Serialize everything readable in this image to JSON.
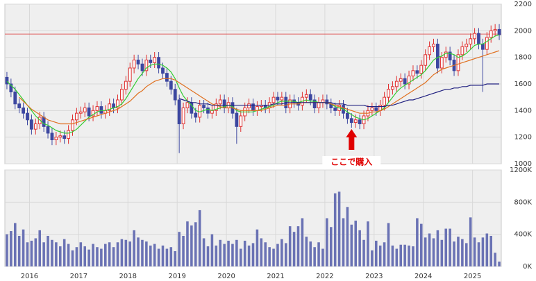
{
  "chart_data": [
    {
      "type": "candlestick",
      "open": [
        1650,
        1600,
        1540,
        1450,
        1420,
        1380,
        1330,
        1260,
        1300,
        1350,
        1280,
        1230,
        1180,
        1200,
        1210,
        1190,
        1250,
        1330,
        1380,
        1390,
        1420,
        1360,
        1400,
        1430,
        1380,
        1400,
        1450,
        1420,
        1480,
        1560,
        1620,
        1720,
        1780,
        1750,
        1700,
        1780,
        1760,
        1800,
        1720,
        1680,
        1620,
        1560,
        1480,
        1300,
        1420,
        1460,
        1380,
        1350,
        1440,
        1420,
        1380,
        1400,
        1450,
        1480,
        1420,
        1460,
        1380,
        1280,
        1360,
        1420,
        1450,
        1400,
        1430,
        1440,
        1420,
        1460,
        1500,
        1480,
        1500,
        1420,
        1480,
        1460,
        1440,
        1500,
        1520,
        1480,
        1420,
        1460,
        1480,
        1450,
        1420,
        1400,
        1440,
        1380,
        1340,
        1310,
        1330,
        1300,
        1360,
        1400,
        1420,
        1400,
        1440,
        1500,
        1560,
        1580,
        1620,
        1640,
        1600,
        1660,
        1700,
        1680,
        1740,
        1820,
        1880,
        1900,
        1720,
        1800,
        1840,
        1780,
        1700,
        1820,
        1880,
        1900,
        1940,
        1980,
        1900,
        1860,
        1950,
        2000,
        2010
      ],
      "high": [
        1690,
        1640,
        1580,
        1490,
        1460,
        1420,
        1370,
        1340,
        1390,
        1390,
        1320,
        1270,
        1240,
        1250,
        1250,
        1290,
        1370,
        1420,
        1430,
        1460,
        1460,
        1440,
        1470,
        1470,
        1440,
        1490,
        1490,
        1520,
        1600,
        1660,
        1760,
        1820,
        1820,
        1790,
        1820,
        1820,
        1840,
        1840,
        1760,
        1720,
        1660,
        1600,
        1520,
        1460,
        1500,
        1500,
        1420,
        1480,
        1480,
        1460,
        1440,
        1490,
        1520,
        1520,
        1500,
        1500,
        1420,
        1400,
        1460,
        1490,
        1490,
        1470,
        1480,
        1480,
        1500,
        1540,
        1540,
        1540,
        1540,
        1520,
        1520,
        1500,
        1540,
        1560,
        1560,
        1520,
        1500,
        1520,
        1520,
        1490,
        1460,
        1480,
        1480,
        1420,
        1380,
        1370,
        1370,
        1400,
        1440,
        1460,
        1460,
        1480,
        1540,
        1600,
        1620,
        1660,
        1680,
        1680,
        1700,
        1740,
        1740,
        1780,
        1860,
        1920,
        1940,
        1940,
        1840,
        1880,
        1880,
        1820,
        1860,
        1920,
        1940,
        1980,
        2020,
        2020,
        1940,
        1990,
        2040,
        2050,
        2050
      ],
      "low": [
        1560,
        1500,
        1410,
        1380,
        1340,
        1290,
        1220,
        1220,
        1260,
        1240,
        1190,
        1140,
        1140,
        1160,
        1150,
        1150,
        1210,
        1290,
        1340,
        1350,
        1320,
        1320,
        1360,
        1340,
        1340,
        1360,
        1380,
        1380,
        1440,
        1520,
        1580,
        1680,
        1710,
        1660,
        1660,
        1720,
        1720,
        1680,
        1640,
        1580,
        1520,
        1440,
        1080,
        1260,
        1380,
        1340,
        1310,
        1310,
        1380,
        1340,
        1340,
        1360,
        1410,
        1380,
        1380,
        1340,
        1150,
        1240,
        1320,
        1380,
        1360,
        1360,
        1390,
        1380,
        1380,
        1420,
        1440,
        1440,
        1380,
        1380,
        1420,
        1400,
        1400,
        1460,
        1440,
        1380,
        1380,
        1420,
        1410,
        1380,
        1360,
        1360,
        1340,
        1300,
        1270,
        1270,
        1260,
        1260,
        1320,
        1360,
        1360,
        1360,
        1400,
        1460,
        1520,
        1540,
        1580,
        1560,
        1560,
        1620,
        1640,
        1640,
        1700,
        1780,
        1840,
        1680,
        1680,
        1760,
        1740,
        1660,
        1660,
        1780,
        1840,
        1860,
        1900,
        1860,
        1540,
        1820,
        1910,
        1960,
        1930
      ],
      "close": [
        1600,
        1540,
        1450,
        1420,
        1380,
        1330,
        1260,
        1300,
        1350,
        1280,
        1230,
        1180,
        1200,
        1210,
        1190,
        1250,
        1330,
        1380,
        1390,
        1420,
        1360,
        1400,
        1430,
        1380,
        1400,
        1450,
        1420,
        1480,
        1560,
        1620,
        1720,
        1780,
        1750,
        1700,
        1780,
        1760,
        1800,
        1720,
        1680,
        1620,
        1560,
        1480,
        1300,
        1420,
        1460,
        1380,
        1350,
        1440,
        1420,
        1380,
        1400,
        1450,
        1480,
        1420,
        1460,
        1380,
        1280,
        1360,
        1420,
        1450,
        1400,
        1430,
        1440,
        1420,
        1460,
        1500,
        1480,
        1500,
        1420,
        1480,
        1460,
        1440,
        1500,
        1520,
        1480,
        1420,
        1460,
        1480,
        1450,
        1420,
        1400,
        1440,
        1380,
        1340,
        1310,
        1330,
        1300,
        1360,
        1400,
        1420,
        1400,
        1440,
        1500,
        1560,
        1580,
        1620,
        1640,
        1600,
        1660,
        1700,
        1680,
        1740,
        1820,
        1880,
        1900,
        1720,
        1800,
        1840,
        1780,
        1700,
        1820,
        1880,
        1900,
        1940,
        1980,
        1900,
        1860,
        1950,
        2000,
        2010,
        1970
      ],
      "up_color": "#e03030",
      "down_color": "#3c47a0",
      "series": [
        {
          "color": "#33cc33",
          "values": [
            1620,
            1590,
            1560,
            1520,
            1480,
            1440,
            1400,
            1360,
            1330,
            1300,
            1290,
            1270,
            1250,
            1240,
            1230,
            1230,
            1240,
            1260,
            1290,
            1320,
            1350,
            1370,
            1390,
            1400,
            1400,
            1410,
            1420,
            1430,
            1450,
            1490,
            1540,
            1590,
            1640,
            1680,
            1720,
            1740,
            1750,
            1750,
            1740,
            1720,
            1690,
            1640,
            1570,
            1510,
            1470,
            1440,
            1400,
            1390,
            1400,
            1410,
            1400,
            1410,
            1420,
            1430,
            1440,
            1430,
            1400,
            1390,
            1390,
            1390,
            1390,
            1400,
            1410,
            1420,
            1430,
            1440,
            1460,
            1470,
            1470,
            1470,
            1470,
            1460,
            1470,
            1480,
            1470,
            1470,
            1460,
            1460,
            1460,
            1450,
            1430,
            1420,
            1410,
            1390,
            1370,
            1350,
            1340,
            1330,
            1340,
            1360,
            1380,
            1400,
            1420,
            1460,
            1500,
            1540,
            1570,
            1590,
            1610,
            1630,
            1650,
            1670,
            1700,
            1740,
            1780,
            1800,
            1810,
            1830,
            1830,
            1820,
            1800,
            1810,
            1830,
            1860,
            1890,
            1900,
            1900,
            1920,
            1940,
            1960,
            1970
          ]
        },
        {
          "color": "#e07020",
          "values": [
            null,
            null,
            null,
            1500,
            1470,
            1440,
            1410,
            1390,
            1370,
            1350,
            1330,
            1320,
            1310,
            1300,
            1300,
            1300,
            1300,
            1310,
            1320,
            1330,
            1340,
            1350,
            1360,
            1370,
            1380,
            1390,
            1400,
            1410,
            1430,
            1450,
            1470,
            1500,
            1530,
            1550,
            1580,
            1600,
            1620,
            1630,
            1640,
            1640,
            1640,
            1630,
            1610,
            1590,
            1570,
            1550,
            1530,
            1510,
            1490,
            1470,
            1450,
            1440,
            1430,
            1420,
            1420,
            1420,
            1410,
            1400,
            1400,
            1400,
            1400,
            1400,
            1400,
            1410,
            1420,
            1430,
            1440,
            1440,
            1440,
            1450,
            1450,
            1450,
            1460,
            1460,
            1460,
            1460,
            1460,
            1460,
            1460,
            1450,
            1440,
            1430,
            1420,
            1410,
            1400,
            1390,
            1380,
            1380,
            1380,
            1390,
            1390,
            1400,
            1410,
            1430,
            1450,
            1470,
            1490,
            1510,
            1530,
            1550,
            1570,
            1590,
            1610,
            1640,
            1670,
            1690,
            1710,
            1720,
            1730,
            1740,
            1750,
            1760,
            1770,
            1780,
            1790,
            1800,
            1810,
            1820,
            1830,
            1840,
            1850
          ]
        },
        {
          "color": "#202080",
          "values": [
            null,
            null,
            null,
            null,
            null,
            null,
            null,
            null,
            null,
            null,
            null,
            null,
            null,
            null,
            null,
            null,
            null,
            null,
            null,
            null,
            null,
            null,
            null,
            null,
            null,
            null,
            null,
            null,
            null,
            null,
            null,
            null,
            null,
            null,
            null,
            null,
            null,
            null,
            null,
            null,
            null,
            null,
            1490,
            1480,
            1470,
            1460,
            1460,
            1450,
            1450,
            1450,
            1440,
            1440,
            1440,
            1440,
            1440,
            1440,
            1440,
            1440,
            1440,
            1440,
            1440,
            1440,
            1440,
            1440,
            1440,
            1450,
            1450,
            1450,
            1460,
            1460,
            1460,
            1460,
            1460,
            1460,
            1460,
            1460,
            1460,
            1460,
            1460,
            1460,
            1450,
            1450,
            1450,
            1440,
            1440,
            1440,
            1440,
            1440,
            1430,
            1430,
            1430,
            1430,
            1430,
            1440,
            1440,
            1450,
            1460,
            1470,
            1480,
            1480,
            1490,
            1500,
            1510,
            1520,
            1530,
            1540,
            1550,
            1560,
            1560,
            1570,
            1570,
            1580,
            1580,
            1590,
            1590,
            1590,
            1590,
            1600,
            1600,
            1600,
            1600
          ]
        }
      ],
      "reference_line": 1975,
      "reference_color": "#e06060",
      "annotation": "ここで購入",
      "ylim": [
        1000,
        2200
      ],
      "yticks": [
        1000,
        1200,
        1400,
        1600,
        1800,
        2000,
        2200
      ],
      "grid": true
    },
    {
      "type": "bar",
      "color": "#6a72b4",
      "categories": [
        null,
        null,
        null,
        null,
        null,
        null,
        "2016",
        null,
        null,
        null,
        null,
        null,
        null,
        null,
        null,
        null,
        null,
        null,
        "2017",
        null,
        null,
        null,
        null,
        null,
        null,
        null,
        null,
        null,
        null,
        null,
        "2018",
        null,
        null,
        null,
        null,
        null,
        null,
        null,
        null,
        null,
        null,
        null,
        "2019",
        null,
        null,
        null,
        null,
        null,
        null,
        null,
        null,
        null,
        null,
        null,
        "2020",
        null,
        null,
        null,
        null,
        null,
        null,
        null,
        null,
        null,
        null,
        null,
        "2021",
        null,
        null,
        null,
        null,
        null,
        null,
        null,
        null,
        null,
        null,
        null,
        "2022",
        null,
        null,
        null,
        null,
        null,
        null,
        null,
        null,
        null,
        null,
        null,
        "2023",
        null,
        null,
        null,
        null,
        null,
        null,
        null,
        null,
        null,
        null,
        null,
        "2024",
        null,
        null,
        null,
        null,
        null,
        null,
        null,
        null,
        null,
        null,
        null,
        "2025",
        null,
        null,
        null,
        null,
        null,
        null
      ],
      "values": [
        400,
        440,
        540,
        380,
        460,
        300,
        320,
        350,
        450,
        300,
        380,
        330,
        300,
        250,
        340,
        280,
        200,
        240,
        300,
        250,
        210,
        280,
        240,
        220,
        280,
        300,
        240,
        300,
        340,
        330,
        310,
        450,
        360,
        330,
        310,
        260,
        280,
        220,
        260,
        220,
        240,
        190,
        430,
        380,
        560,
        510,
        550,
        700,
        350,
        250,
        400,
        260,
        330,
        280,
        320,
        280,
        330,
        220,
        320,
        260,
        290,
        460,
        350,
        300,
        240,
        220,
        280,
        340,
        290,
        500,
        430,
        500,
        600,
        370,
        310,
        240,
        300,
        220,
        600,
        490,
        910,
        930,
        600,
        740,
        520,
        570,
        450,
        330,
        560,
        200,
        320,
        260,
        300,
        540,
        260,
        220,
        270,
        270,
        260,
        250,
        600,
        530,
        360,
        410,
        350,
        450,
        330,
        470,
        470,
        310,
        370,
        340,
        290,
        610,
        360,
        300,
        360,
        410,
        380,
        170,
        60
      ],
      "ylim": [
        0,
        1200
      ],
      "yticks": [
        {
          "value": 0,
          "label": "0K"
        },
        {
          "value": 400,
          "label": "400K"
        },
        {
          "value": 800,
          "label": "800K"
        },
        {
          "value": 1200,
          "label": "1200K"
        }
      ],
      "grid": true
    }
  ]
}
